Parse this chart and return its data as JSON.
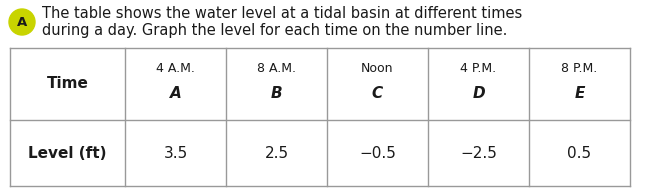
{
  "title_line1": "The table shows the water level at a tidal basin at different times",
  "title_line2": "during a day. Graph the level for each time on the number line.",
  "label_circle": "A",
  "col_header_row1": [
    "4 A.M.",
    "8 A.M.",
    "Noon",
    "4 P.M.",
    "8 P.M."
  ],
  "col_header_row2": [
    "A",
    "B",
    "C",
    "D",
    "E"
  ],
  "row_label": [
    "Time",
    "Level (ft)"
  ],
  "values": [
    "3.5",
    "2.5",
    "−0.5",
    "−2.5",
    "0.5"
  ],
  "bg_color": "#ffffff",
  "table_bg": "#ffffff",
  "border_color": "#999999",
  "text_color": "#1a1a1a",
  "circle_color": "#c8d400",
  "circle_text_color": "#1a1a1a",
  "title_fontsize": 10.5,
  "header_fontsize": 9.0,
  "letter_fontsize": 11.0,
  "table_fontsize": 11.0,
  "small_label_fontsize": 7.5
}
